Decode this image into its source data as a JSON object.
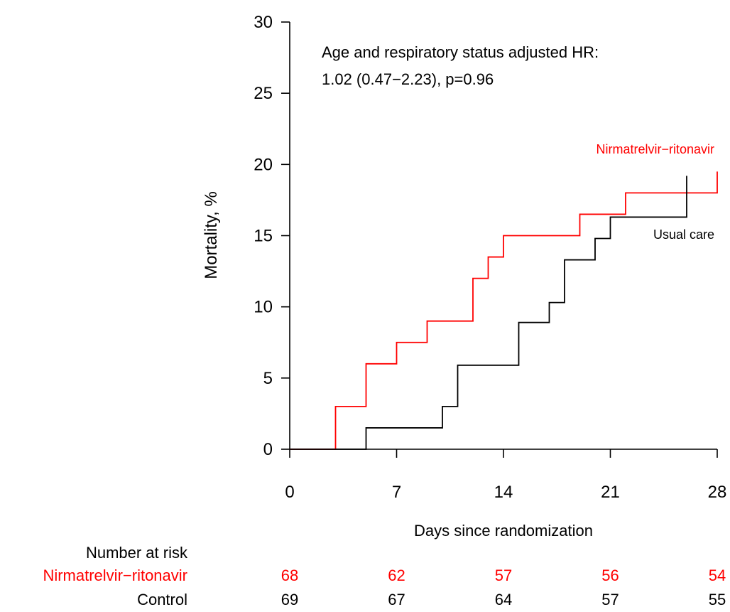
{
  "chart_data": {
    "type": "line",
    "step": true,
    "xlabel": "Days since randomization",
    "ylabel": "Mortality, %",
    "xlim": [
      0,
      28
    ],
    "ylim": [
      0,
      30
    ],
    "xticks": [
      0,
      7,
      14,
      21,
      28
    ],
    "yticks": [
      0,
      5,
      10,
      15,
      20,
      25,
      30
    ],
    "grid": false,
    "annotation": {
      "line1": "Age and respiratory status adjusted HR:",
      "line2": "1.02 (0.47−2.23), p=0.96"
    },
    "series": [
      {
        "name": "Nirmatrelvir−ritonavir",
        "color": "#ff0000",
        "points": [
          [
            0,
            0
          ],
          [
            3,
            3.0
          ],
          [
            5,
            6.0
          ],
          [
            7,
            7.5
          ],
          [
            9,
            9.0
          ],
          [
            12,
            12.0
          ],
          [
            13,
            13.5
          ],
          [
            14,
            15.0
          ],
          [
            19,
            16.5
          ],
          [
            22,
            18.0
          ],
          [
            28,
            19.5
          ]
        ],
        "end_x": 28
      },
      {
        "name": "Usual care",
        "color": "#000000",
        "points": [
          [
            0,
            0
          ],
          [
            5,
            1.5
          ],
          [
            10,
            3.0
          ],
          [
            11,
            5.9
          ],
          [
            15,
            8.9
          ],
          [
            17,
            10.3
          ],
          [
            18,
            13.3
          ],
          [
            20,
            14.8
          ],
          [
            21,
            16.3
          ],
          [
            26,
            19.2
          ]
        ],
        "end_x": 26
      }
    ],
    "risk_table": {
      "header": "Number at risk",
      "times": [
        0,
        7,
        14,
        21,
        28
      ],
      "rows": [
        {
          "label": "Nirmatrelvir−ritonavir",
          "color": "#ff0000",
          "values": [
            "68",
            "62",
            "57",
            "56",
            "54"
          ]
        },
        {
          "label": "Control",
          "color": "#000000",
          "values": [
            "69",
            "67",
            "64",
            "57",
            "55"
          ]
        }
      ]
    }
  }
}
